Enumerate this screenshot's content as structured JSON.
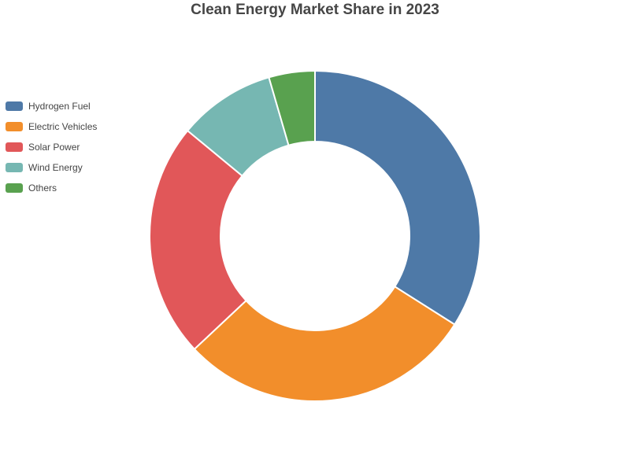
{
  "chart_data": {
    "type": "pie",
    "variant": "donut",
    "title": "Clean Energy Market Share in 2023",
    "legend_position": "left",
    "categories": [
      "Hydrogen Fuel",
      "Electric Vehicles",
      "Solar Power",
      "Wind Energy",
      "Others"
    ],
    "values": [
      34,
      29,
      23,
      9.5,
      4.5
    ],
    "colors": [
      "#4e79a7",
      "#f28e2b",
      "#e15759",
      "#76b7b2",
      "#59a14f"
    ]
  }
}
